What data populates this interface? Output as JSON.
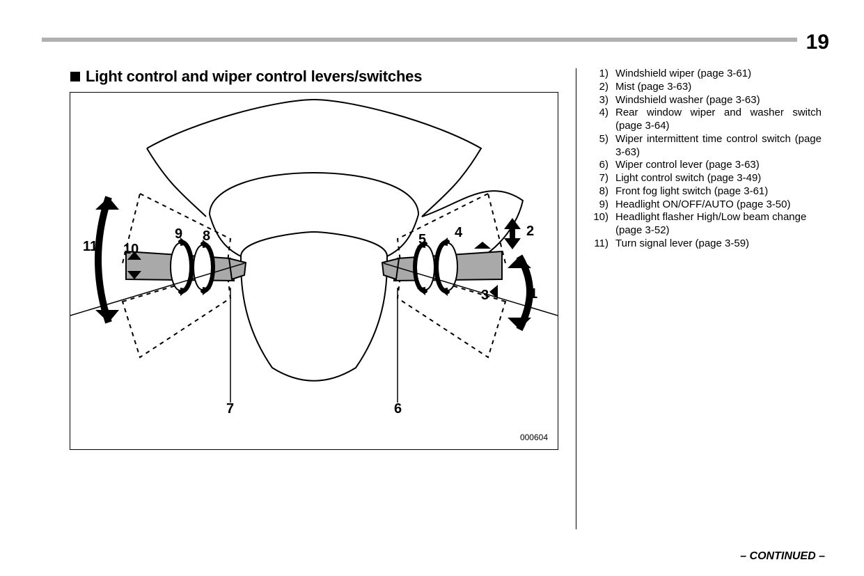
{
  "page_number": "19",
  "heading": "Light control and wiper control levers/switches",
  "continued": "– CONTINUED –",
  "figure_code": "000604",
  "legend": [
    {
      "n": "1)",
      "t": "Windshield wiper (page 3-61)",
      "justify": false
    },
    {
      "n": "2)",
      "t": "Mist (page 3-63)",
      "justify": false
    },
    {
      "n": "3)",
      "t": "Windshield washer (page 3-63)",
      "justify": false
    },
    {
      "n": "4)",
      "t": "Rear window wiper and washer switch (page 3-64)",
      "justify": true
    },
    {
      "n": "5)",
      "t": "Wiper intermittent time control switch (page 3-63)",
      "justify": true
    },
    {
      "n": "6)",
      "t": "Wiper control lever (page 3-63)",
      "justify": false
    },
    {
      "n": "7)",
      "t": "Light control switch (page 3-49)",
      "justify": false
    },
    {
      "n": "8)",
      "t": "Front fog light switch (page 3-61)",
      "justify": false
    },
    {
      "n": "9)",
      "t": "Headlight ON/OFF/AUTO (page 3-50)",
      "justify": false
    },
    {
      "n": "10)",
      "t": "Headlight flasher High/Low beam change (page 3-52)",
      "justify": false
    },
    {
      "n": "11)",
      "t": "Turn signal lever (page 3-59)",
      "justify": false
    }
  ],
  "callouts": {
    "c1": "1",
    "c2": "2",
    "c3": "3",
    "c4": "4",
    "c5": "5",
    "c6": "6",
    "c7": "7",
    "c8": "8",
    "c9": "9",
    "c10": "10",
    "c11": "11"
  },
  "style": {
    "page_bg": "#ffffff",
    "rule_color": "#b0b0b0",
    "stalk_fill": "#a9a9a9",
    "line_color": "#000000"
  }
}
